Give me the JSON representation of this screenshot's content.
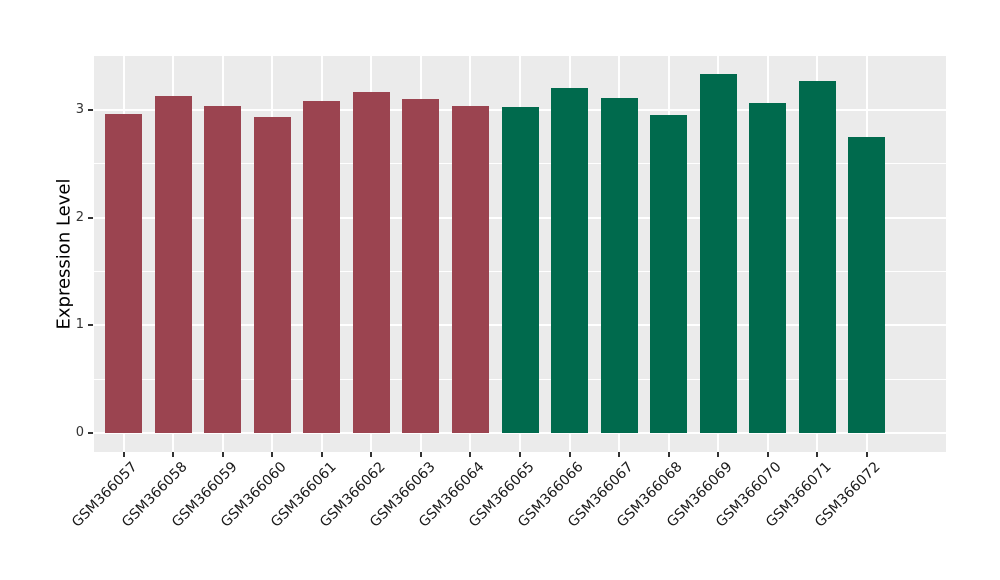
{
  "chart_data": {
    "type": "bar",
    "title": "",
    "xlabel": "",
    "ylabel": "Expression Level",
    "categories": [
      "GSM366057",
      "GSM366058",
      "GSM366059",
      "GSM366060",
      "GSM366061",
      "GSM366062",
      "GSM366063",
      "GSM366064",
      "GSM366065",
      "GSM366066",
      "GSM366067",
      "GSM366068",
      "GSM366069",
      "GSM366070",
      "GSM366071",
      "GSM366072"
    ],
    "values": [
      2.96,
      3.13,
      3.04,
      2.93,
      3.08,
      3.17,
      3.1,
      3.04,
      3.03,
      3.2,
      3.11,
      2.95,
      3.33,
      3.06,
      3.27,
      2.75
    ],
    "bar_colors": [
      "#9B4450",
      "#9B4450",
      "#9B4450",
      "#9B4450",
      "#9B4450",
      "#9B4450",
      "#9B4450",
      "#9B4450",
      "#006A4D",
      "#006A4D",
      "#006A4D",
      "#006A4D",
      "#006A4D",
      "#006A4D",
      "#006A4D",
      "#006A4D"
    ],
    "group_colors": {
      "left_group": "#9B4450",
      "right_group": "#006A4D"
    },
    "yticks": [
      0,
      1,
      2,
      3
    ],
    "minor_yticks": [
      0.5,
      1.5,
      2.5
    ],
    "ylim": [
      -0.17,
      3.5
    ],
    "grid": "on",
    "legend": "none",
    "panel_background": "#EBEBEB",
    "grid_color": "#FFFFFF",
    "tick_color": "#333333",
    "axis_text_color": "#333333",
    "x_label_color": "#1a1a1a",
    "x_label_angle_deg": 45
  }
}
